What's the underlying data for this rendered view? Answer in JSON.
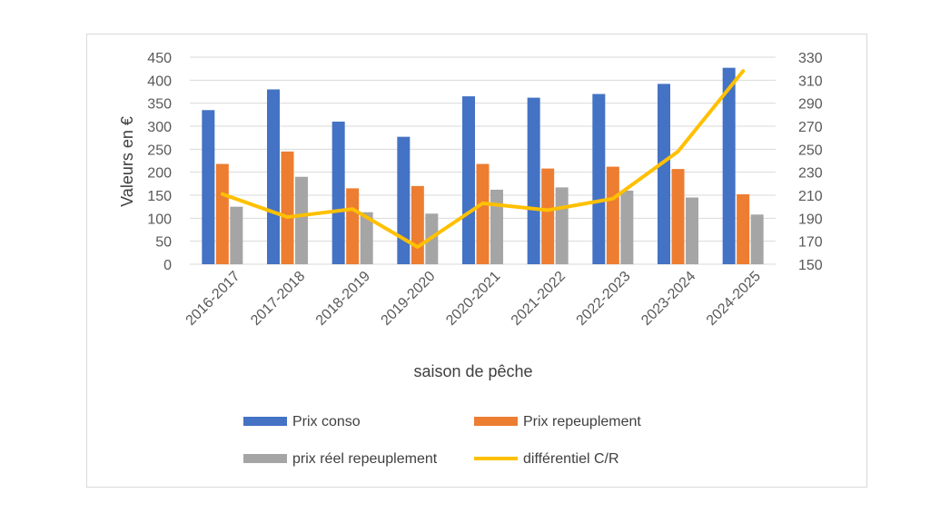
{
  "chart_data": {
    "type": "bar",
    "categories": [
      "2016-2017",
      "2017-2018",
      "2018-2019",
      "2019-2020",
      "2020-2021",
      "2021-2022",
      "2022-2023",
      "2023-2024",
      "2024-2025"
    ],
    "series": [
      {
        "name": "Prix conso",
        "axis": "left",
        "kind": "bar",
        "color": "#4472c4",
        "values": [
          335,
          380,
          310,
          277,
          365,
          362,
          370,
          392,
          427
        ]
      },
      {
        "name": "Prix repeuplement",
        "axis": "left",
        "kind": "bar",
        "color": "#ed7d31",
        "values": [
          218,
          245,
          165,
          170,
          218,
          208,
          212,
          207,
          152
        ]
      },
      {
        "name": "prix réel repeuplement",
        "axis": "left",
        "kind": "bar",
        "color": "#a5a5a5",
        "values": [
          125,
          190,
          113,
          110,
          162,
          167,
          160,
          145,
          108
        ]
      },
      {
        "name": "différentiel C/R",
        "axis": "right",
        "kind": "line",
        "color": "#ffc000",
        "values": [
          211,
          191,
          198,
          165,
          203,
          197,
          207,
          248,
          318
        ]
      }
    ],
    "xlabel": "saison de pêche",
    "ylabel": "Valeurs en €",
    "ylim": [
      0,
      450
    ],
    "y_ticks": [
      "0",
      "50",
      "100",
      "150",
      "200",
      "250",
      "300",
      "350",
      "400",
      "450"
    ],
    "y2lim": [
      150,
      330
    ],
    "y2_ticks": [
      "150",
      "170",
      "190",
      "210",
      "230",
      "250",
      "270",
      "290",
      "310",
      "330"
    ],
    "grid": true,
    "legend_position": "bottom"
  }
}
